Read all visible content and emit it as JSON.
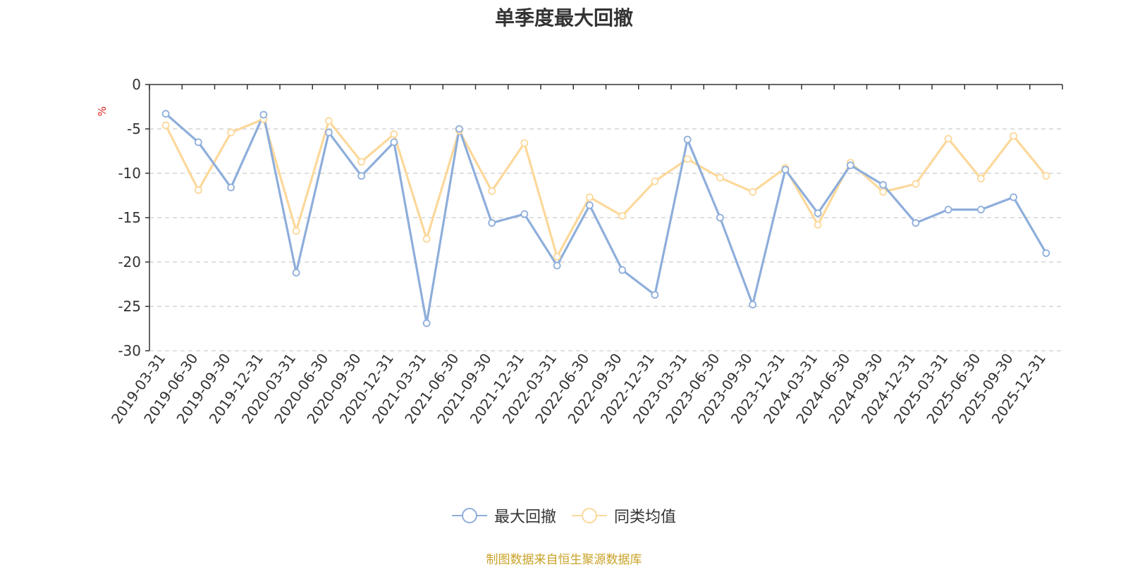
{
  "chart_data": {
    "type": "line",
    "title": "单季度最大回撤",
    "ylabel": "%",
    "xlabel": "",
    "ylim": [
      -30,
      0
    ],
    "yticks": [
      0,
      -5,
      -10,
      -15,
      -20,
      -25,
      -30
    ],
    "grid": true,
    "legend_position": "bottom",
    "categories": [
      "2019-03-31",
      "2019-06-30",
      "2019-09-30",
      "2019-12-31",
      "2020-03-31",
      "2020-06-30",
      "2020-09-30",
      "2020-12-31",
      "2021-03-31",
      "2021-06-30",
      "2021-09-30",
      "2021-12-31",
      "2022-03-31",
      "2022-06-30",
      "2022-09-30",
      "2022-12-31",
      "2023-03-31",
      "2023-06-30",
      "2023-09-30",
      "2023-12-31",
      "2024-03-31",
      "2024-06-30",
      "2024-09-30",
      "2024-12-31",
      "2025-03-31",
      "2025-06-30",
      "2025-09-30",
      "2025-12-31"
    ],
    "series": [
      {
        "name": "最大回撤",
        "color": "#8eaedb",
        "values": [
          -3.3,
          -6.5,
          -11.6,
          -3.4,
          -21.2,
          -5.4,
          -10.3,
          -6.5,
          -26.9,
          -5.0,
          -15.6,
          -14.6,
          -20.4,
          -13.6,
          -20.9,
          -23.7,
          -6.2,
          -15.0,
          -24.8,
          -9.6,
          -14.5,
          -9.1,
          -11.3,
          -15.6,
          -14.1,
          -14.1,
          -12.7,
          -19.0
        ]
      },
      {
        "name": "同类均值",
        "color": "#fcd89a",
        "values": [
          -4.6,
          -11.9,
          -5.4,
          -3.9,
          -16.5,
          -4.1,
          -8.7,
          -5.6,
          -17.4,
          -5.2,
          -12.0,
          -6.6,
          -19.4,
          -12.7,
          -14.8,
          -10.9,
          -8.4,
          -10.5,
          -12.1,
          -9.4,
          -15.8,
          -8.8,
          -12.1,
          -11.2,
          -6.1,
          -10.6,
          -5.8,
          -10.3
        ]
      }
    ]
  },
  "source_note": "制图数据来自恒生聚源数据库",
  "colors": {
    "grid": "#cccccc",
    "axis": "#333333",
    "unit_label": "#e02020",
    "source_note": "#c9a227"
  }
}
